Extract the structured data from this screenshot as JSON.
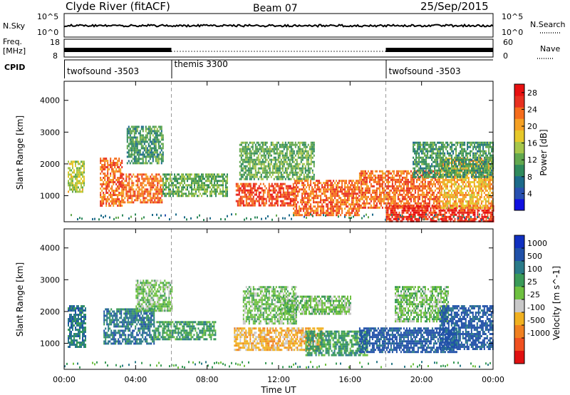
{
  "header": {
    "title": "Clyde River (fitACF)",
    "beam": "Beam 07",
    "date": "25/Sep/2015"
  },
  "summary": {
    "nsky_label": "N.Sky",
    "nsky_top": "10^5",
    "nsky_bottom": "10^0",
    "nsearch_label": "N.Search",
    "nsearch_right_top": "10^5",
    "nsearch_right_bottom": "10^0",
    "freq_label_1": "Freq.",
    "freq_label_2": "[MHz]",
    "freq_ticks": [
      "18",
      "8"
    ],
    "nave_label": "Nave",
    "nave_ticks": [
      "60",
      "0"
    ],
    "cpid_label": "CPID",
    "modes": [
      {
        "name": "twofsound",
        "cpid": "-3503",
        "start_hour": 0
      },
      {
        "name": "themis",
        "cpid": "3300",
        "start_hour": 6
      },
      {
        "name": "twofsound",
        "cpid": "-3503",
        "start_hour": 18
      }
    ]
  },
  "chart_data": [
    {
      "type": "heatmap",
      "name": "power",
      "xlabel": "Time UT",
      "ylabel": "Slant Range [km]",
      "xlim_hours": [
        0,
        24
      ],
      "ylim_km": [
        180,
        4600
      ],
      "x_ticks": [
        "00:00",
        "04:00",
        "08:00",
        "12:00",
        "16:00",
        "20:00",
        "00:00"
      ],
      "y_ticks": [
        1000,
        2000,
        3000,
        4000
      ],
      "colorbar": {
        "label": "Power [dB]",
        "range": [
          0,
          30
        ],
        "ticks": [
          4,
          8,
          12,
          16,
          20,
          24,
          28
        ],
        "colors": [
          "#1010e0",
          "#2850b0",
          "#1c6a8a",
          "#2f8a5c",
          "#62a84e",
          "#a6c64a",
          "#e6c82a",
          "#f5a024",
          "#f56c1c",
          "#e83020",
          "#e81010"
        ]
      },
      "patches": [
        {
          "t0": 0.2,
          "t1": 1.1,
          "r0": 1100,
          "r1": 2100,
          "level": 16
        },
        {
          "t0": 2.0,
          "t1": 3.2,
          "r0": 700,
          "r1": 2200,
          "level": 24
        },
        {
          "t0": 3.2,
          "t1": 5.5,
          "r0": 800,
          "r1": 1700,
          "level": 24
        },
        {
          "t0": 5.5,
          "t1": 9.1,
          "r0": 1000,
          "r1": 1700,
          "level": 12
        },
        {
          "t0": 3.5,
          "t1": 5.5,
          "r0": 2000,
          "r1": 3200,
          "level": 10
        },
        {
          "t0": 9.6,
          "t1": 12.8,
          "r0": 700,
          "r1": 1400,
          "level": 26
        },
        {
          "t0": 9.8,
          "t1": 14.0,
          "r0": 1500,
          "r1": 2700,
          "level": 12
        },
        {
          "t0": 12.8,
          "t1": 16.5,
          "r0": 400,
          "r1": 1500,
          "level": 24
        },
        {
          "t0": 16.5,
          "t1": 21.0,
          "r0": 600,
          "r1": 1800,
          "level": 24
        },
        {
          "t0": 18.0,
          "t1": 24.0,
          "r0": 200,
          "r1": 700,
          "level": 28
        },
        {
          "t0": 21.0,
          "t1": 24.0,
          "r0": 600,
          "r1": 2200,
          "level": 20
        },
        {
          "t0": 19.5,
          "t1": 24.0,
          "r0": 1600,
          "r1": 2700,
          "level": 10
        }
      ]
    },
    {
      "type": "heatmap",
      "name": "velocity",
      "xlabel": "Time UT",
      "ylabel": "Slant Range [km]",
      "xlim_hours": [
        0,
        24
      ],
      "ylim_km": [
        180,
        4600
      ],
      "x_ticks": [
        "00:00",
        "04:00",
        "08:00",
        "12:00",
        "16:00",
        "20:00",
        "00:00"
      ],
      "y_ticks": [
        1000,
        2000,
        3000,
        4000
      ],
      "colorbar": {
        "label": "Velocity [m s^-1]",
        "ticks": [
          "1000",
          "500",
          "100",
          "25",
          "-25",
          "-100",
          "-500",
          "-1000"
        ],
        "colors": [
          "#1030c0",
          "#2050a8",
          "#2a7a88",
          "#3a9a58",
          "#6ec040",
          "#c8c8c8",
          "#f0b020",
          "#f08020",
          "#f05020",
          "#e01010"
        ]
      },
      "patches": [
        {
          "t0": 0.2,
          "t1": 1.2,
          "r0": 900,
          "r1": 2200,
          "level": "500"
        },
        {
          "t0": 2.2,
          "t1": 5.0,
          "r0": 1000,
          "r1": 2100,
          "level": "500"
        },
        {
          "t0": 5.0,
          "t1": 8.5,
          "r0": 1100,
          "r1": 1700,
          "level": "100"
        },
        {
          "t0": 4.0,
          "t1": 6.0,
          "r0": 2000,
          "r1": 3000,
          "level": "25"
        },
        {
          "t0": 9.5,
          "t1": 14.5,
          "r0": 800,
          "r1": 1500,
          "level": "-100"
        },
        {
          "t0": 10.0,
          "t1": 13.0,
          "r0": 1600,
          "r1": 2800,
          "level": "25"
        },
        {
          "t0": 13.5,
          "t1": 17.0,
          "r0": 600,
          "r1": 1400,
          "level": "100"
        },
        {
          "t0": 16.5,
          "t1": 22.0,
          "r0": 700,
          "r1": 1500,
          "level": "1000"
        },
        {
          "t0": 18.5,
          "t1": 21.5,
          "r0": 1700,
          "r1": 2800,
          "level": "25"
        },
        {
          "t0": 21.0,
          "t1": 24.0,
          "r0": 800,
          "r1": 2200,
          "level": "1000"
        },
        {
          "t0": 12.0,
          "t1": 16.0,
          "r0": 1900,
          "r1": 2500,
          "level": "25"
        }
      ]
    }
  ]
}
